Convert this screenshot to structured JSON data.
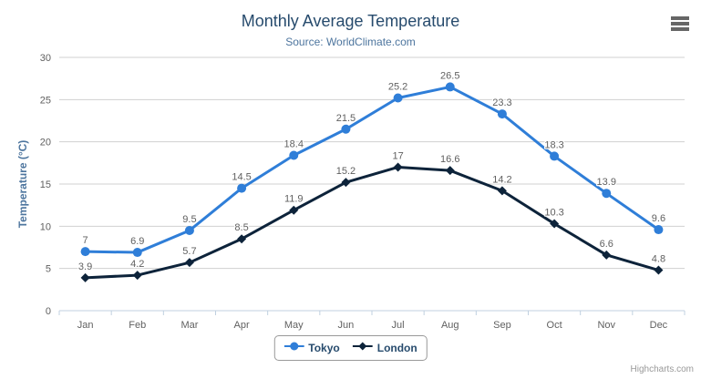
{
  "chart_data": {
    "type": "line",
    "title": "Monthly Average Temperature",
    "subtitle": "Source: WorldClimate.com",
    "xlabel": "",
    "ylabel": "Temperature (°C)",
    "ylim": [
      0,
      30
    ],
    "ytick_interval": 5,
    "grid": true,
    "data_labels": true,
    "legend_position": "bottom-center",
    "categories": [
      "Jan",
      "Feb",
      "Mar",
      "Apr",
      "May",
      "Jun",
      "Jul",
      "Aug",
      "Sep",
      "Oct",
      "Nov",
      "Dec"
    ],
    "series": [
      {
        "name": "Tokyo",
        "color": "#2f7ed8",
        "marker": "circle",
        "values": [
          7,
          6.9,
          9.5,
          14.5,
          18.4,
          21.5,
          25.2,
          26.5,
          23.3,
          18.3,
          13.9,
          9.6
        ]
      },
      {
        "name": "London",
        "color": "#0d233a",
        "marker": "diamond",
        "values": [
          3.9,
          4.2,
          5.7,
          8.5,
          11.9,
          15.2,
          17,
          16.6,
          14.2,
          10.3,
          6.6,
          4.8
        ]
      }
    ]
  },
  "colors": {
    "title": "#274b6d",
    "subtitle": "#4d759e",
    "axis_title": "#4d759e",
    "tick_label": "#606060",
    "data_label": "#606060",
    "gridline": "#d0d0d0",
    "axis_line": "#c0d0e0",
    "legend_border": "#999999",
    "legend_text": "#274b6d"
  },
  "icons": {
    "context_menu": "hamburger-menu"
  },
  "credits": {
    "label": "Highcharts.com"
  }
}
